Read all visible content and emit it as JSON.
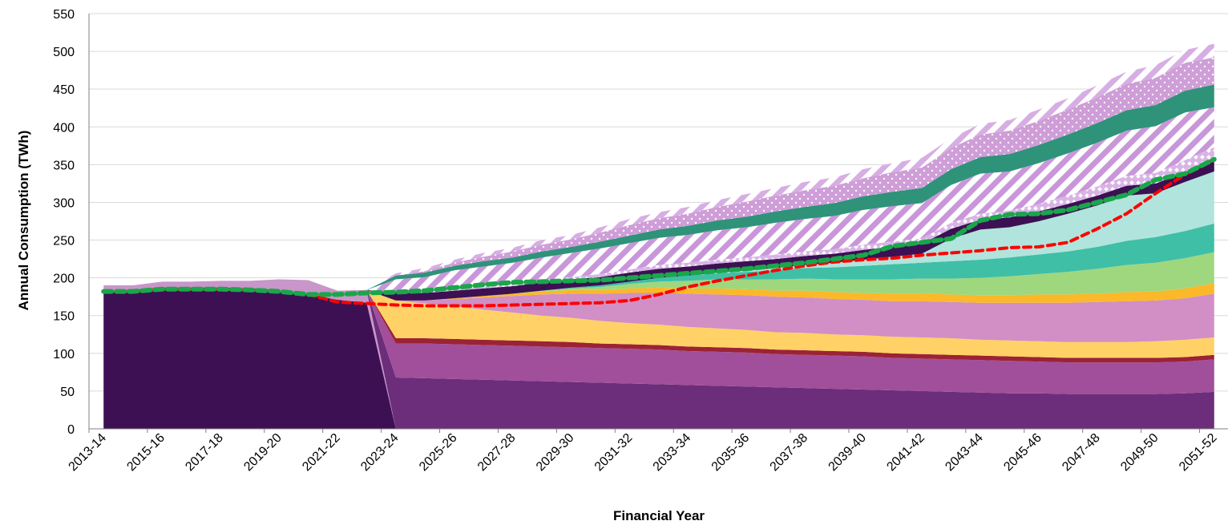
{
  "chart_data": {
    "type": "area",
    "title": "",
    "xlabel": "Financial Year",
    "ylabel": "Annual Consumption (TWh)",
    "ylim": [
      0,
      550
    ],
    "y_ticks": [
      0,
      50,
      100,
      150,
      200,
      250,
      300,
      350,
      400,
      450,
      500,
      550
    ],
    "grid": true,
    "legend": "none",
    "x": [
      "2013-14",
      "2014-15",
      "2015-16",
      "2016-17",
      "2017-18",
      "2018-19",
      "2019-20",
      "2020-21",
      "2021-22",
      "2022-23",
      "2023-24",
      "2024-25",
      "2025-26",
      "2026-27",
      "2027-28",
      "2028-29",
      "2029-30",
      "2030-31",
      "2031-32",
      "2032-33",
      "2033-34",
      "2034-35",
      "2035-36",
      "2036-37",
      "2037-38",
      "2038-39",
      "2039-40",
      "2040-41",
      "2041-42",
      "2042-43",
      "2043-44",
      "2044-45",
      "2045-46",
      "2046-47",
      "2047-48",
      "2048-49",
      "2049-50",
      "2050-51",
      "2051-52"
    ],
    "x_tick_labels": [
      "2013-14",
      "2015-16",
      "2017-18",
      "2019-20",
      "2021-22",
      "2023-24",
      "2025-26",
      "2027-28",
      "2029-30",
      "2031-32",
      "2033-34",
      "2035-36",
      "2037-38",
      "2039-40",
      "2041-42",
      "2043-44",
      "2045-46",
      "2047-48",
      "2049-50",
      "2051-52"
    ],
    "series": [
      {
        "color": "#3c1053",
        "pattern": "solid",
        "values": [
          182,
          182,
          185,
          185,
          185,
          184,
          182,
          178,
          171,
          167,
          0,
          0,
          0,
          0,
          0,
          0,
          0,
          0,
          0,
          0,
          0,
          0,
          0,
          0,
          0,
          0,
          0,
          0,
          0,
          0,
          0,
          0,
          0,
          0,
          0,
          0,
          0,
          0,
          0
        ]
      },
      {
        "color": "#c896c8",
        "pattern": "solid",
        "values": [
          8,
          8,
          10,
          10,
          11,
          12,
          16,
          19,
          12,
          17,
          0,
          0,
          0,
          0,
          0,
          0,
          0,
          0,
          0,
          0,
          0,
          0,
          0,
          0,
          0,
          0,
          0,
          0,
          0,
          0,
          0,
          0,
          0,
          0,
          0,
          0,
          0,
          0,
          0
        ]
      },
      {
        "color": "#6c2d7a",
        "pattern": "solid",
        "values": [
          0,
          0,
          0,
          0,
          0,
          0,
          0,
          0,
          0,
          0,
          68,
          67,
          66,
          65,
          64,
          63,
          62,
          61,
          60,
          59,
          58,
          57,
          56,
          55,
          54,
          53,
          52,
          51,
          50,
          49,
          48,
          47,
          47,
          46,
          46,
          46,
          46,
          47,
          49
        ]
      },
      {
        "color": "#a14f9a",
        "pattern": "solid",
        "values": [
          0,
          0,
          0,
          0,
          0,
          0,
          0,
          0,
          0,
          0,
          45,
          46,
          46,
          46,
          46,
          46,
          46,
          46,
          46,
          46,
          45,
          45,
          45,
          44,
          44,
          44,
          44,
          43,
          43,
          43,
          43,
          43,
          42,
          42,
          42,
          42,
          42,
          42,
          43
        ]
      },
      {
        "color": "#9b2335",
        "pattern": "solid",
        "values": [
          0,
          0,
          0,
          0,
          0,
          0,
          0,
          0,
          0,
          0,
          7,
          7,
          7,
          7,
          7,
          7,
          7,
          6,
          6,
          6,
          6,
          6,
          6,
          6,
          6,
          6,
          6,
          6,
          6,
          6,
          6,
          6,
          6,
          6,
          6,
          6,
          6,
          6,
          6
        ]
      },
      {
        "color": "#ffd166",
        "pattern": "solid",
        "values": [
          0,
          0,
          0,
          0,
          0,
          0,
          0,
          0,
          0,
          0,
          50,
          46,
          43,
          40,
          37,
          34,
          32,
          30,
          28,
          27,
          26,
          25,
          24,
          23,
          23,
          22,
          22,
          22,
          22,
          22,
          21,
          21,
          21,
          21,
          21,
          21,
          22,
          23,
          23
        ]
      },
      {
        "color": "#d18fc5",
        "pattern": "solid",
        "values": [
          0,
          0,
          0,
          0,
          0,
          0,
          0,
          0,
          0,
          0,
          0,
          4,
          10,
          16,
          22,
          28,
          32,
          36,
          40,
          42,
          44,
          45,
          46,
          47,
          47,
          47,
          47,
          47,
          48,
          48,
          49,
          50,
          51,
          52,
          53,
          54,
          54,
          55,
          58
        ]
      },
      {
        "color": "#fbb829",
        "pattern": "solid",
        "values": [
          0,
          0,
          0,
          0,
          0,
          0,
          0,
          0,
          0,
          0,
          0,
          0,
          1,
          2,
          3,
          4,
          5,
          5,
          6,
          7,
          7,
          8,
          8,
          8,
          9,
          9,
          9,
          10,
          10,
          10,
          10,
          10,
          11,
          11,
          11,
          12,
          12,
          13,
          14
        ]
      },
      {
        "color": "#9fd77f",
        "pattern": "solid",
        "values": [
          0,
          0,
          0,
          0,
          0,
          0,
          0,
          0,
          0,
          0,
          0,
          0,
          0,
          0,
          0,
          1,
          2,
          4,
          6,
          8,
          10,
          12,
          13,
          15,
          16,
          17,
          18,
          19,
          20,
          21,
          23,
          25,
          27,
          30,
          33,
          36,
          38,
          40,
          41
        ]
      },
      {
        "color": "#3fbfa6",
        "pattern": "solid",
        "values": [
          0,
          0,
          0,
          0,
          0,
          0,
          0,
          0,
          0,
          0,
          0,
          0,
          0,
          0,
          0,
          0,
          1,
          2,
          3,
          5,
          7,
          8,
          10,
          12,
          14,
          16,
          18,
          20,
          21,
          23,
          24,
          25,
          26,
          27,
          29,
          32,
          34,
          36,
          38
        ]
      },
      {
        "color": "#b0e4dc",
        "pattern": "solid",
        "values": [
          0,
          0,
          0,
          0,
          0,
          0,
          0,
          0,
          0,
          0,
          0,
          0,
          0,
          0,
          0,
          0,
          0,
          0,
          0,
          0,
          0,
          1,
          2,
          3,
          4,
          6,
          8,
          10,
          12,
          30,
          40,
          40,
          44,
          50,
          55,
          60,
          58,
          65,
          69
        ]
      },
      {
        "color": "#3c1053",
        "pattern": "solid",
        "values": [
          0,
          0,
          0,
          0,
          0,
          0,
          0,
          0,
          0,
          0,
          10,
          10,
          10,
          10,
          10,
          11,
          11,
          11,
          12,
          12,
          12,
          12,
          12,
          12,
          12,
          12,
          13,
          13,
          13,
          13,
          13,
          13,
          13,
          13,
          13,
          13,
          13,
          13,
          13
        ]
      },
      {
        "color": "#d9b3e6",
        "pattern": "diamonds",
        "values": [
          0,
          0,
          0,
          0,
          0,
          0,
          0,
          0,
          0,
          0,
          0,
          1,
          2,
          2,
          3,
          3,
          3,
          4,
          4,
          5,
          5,
          5,
          5,
          6,
          6,
          6,
          7,
          7,
          7,
          8,
          8,
          9,
          10,
          11,
          12,
          13,
          14,
          16,
          19
        ]
      },
      {
        "color": "#c997d9",
        "pattern": "stripes",
        "values": [
          0,
          0,
          0,
          0,
          0,
          0,
          0,
          0,
          0,
          0,
          18,
          20,
          25,
          27,
          28,
          30,
          32,
          34,
          35,
          36,
          37,
          39,
          40,
          42,
          43,
          44,
          46,
          47,
          47,
          50,
          53,
          52,
          54,
          56,
          58,
          60,
          62,
          63,
          53
        ]
      },
      {
        "color": "#2e9379",
        "pattern": "solid",
        "values": [
          0,
          0,
          0,
          0,
          0,
          0,
          0,
          0,
          0,
          0,
          5,
          6,
          6,
          7,
          7,
          8,
          8,
          9,
          10,
          11,
          12,
          13,
          14,
          15,
          16,
          17,
          18,
          19,
          20,
          21,
          22,
          23,
          24,
          25,
          26,
          27,
          28,
          29,
          30
        ]
      },
      {
        "color": "#cf9dd8",
        "pattern": "dots",
        "values": [
          0,
          0,
          0,
          0,
          0,
          0,
          0,
          0,
          0,
          0,
          0,
          2,
          4,
          6,
          8,
          9,
          10,
          12,
          14,
          15,
          16,
          18,
          20,
          21,
          22,
          23,
          24,
          26,
          27,
          28,
          30,
          31,
          32,
          33,
          34,
          35,
          36,
          37,
          36
        ]
      },
      {
        "color": "#d7aee3",
        "pattern": "stripes",
        "values": [
          0,
          0,
          0,
          0,
          0,
          0,
          0,
          0,
          0,
          0,
          3,
          4,
          4,
          5,
          5,
          6,
          6,
          7,
          8,
          8,
          9,
          9,
          10,
          10,
          11,
          11,
          12,
          12,
          13,
          13,
          14,
          14,
          15,
          15,
          16,
          16,
          17,
          17,
          18
        ]
      }
    ],
    "lines": [
      {
        "color": "#ff0000",
        "style": "dashed",
        "values": [
          182,
          182,
          185,
          185,
          185,
          184,
          182,
          178,
          168,
          166,
          164,
          163,
          163,
          163,
          164,
          165,
          166,
          167,
          170,
          178,
          188,
          196,
          203,
          210,
          216,
          221,
          224,
          226,
          230,
          233,
          236,
          240,
          241,
          247,
          265,
          285,
          312,
          337,
          357
        ]
      },
      {
        "color": "#1aa64b",
        "style": "dashed",
        "values": [
          182,
          182,
          185,
          185,
          185,
          184,
          182,
          178,
          178,
          180,
          181,
          183,
          187,
          191,
          194,
          195,
          196,
          197,
          200,
          203,
          206,
          209,
          212,
          216,
          220,
          225,
          230,
          242,
          247,
          252,
          276,
          284,
          285,
          290,
          300,
          310,
          330,
          338,
          357
        ]
      }
    ]
  }
}
